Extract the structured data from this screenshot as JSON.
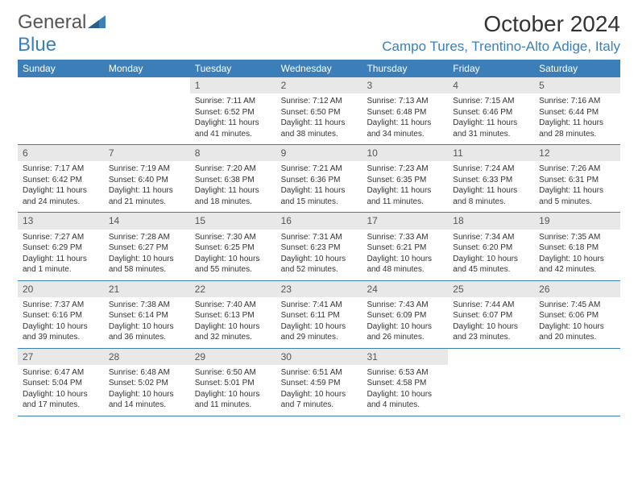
{
  "logo": {
    "text_a": "General",
    "text_b": "Blue"
  },
  "title": "October 2024",
  "location": "Campo Tures, Trentino-Alto Adige, Italy",
  "colors": {
    "accent": "#3c7fb8",
    "daybar": "#e8e8e8",
    "text": "#333333",
    "bg": "#ffffff"
  },
  "weekdays": [
    "Sunday",
    "Monday",
    "Tuesday",
    "Wednesday",
    "Thursday",
    "Friday",
    "Saturday"
  ],
  "weeks": [
    [
      {
        "n": "",
        "sr": "",
        "ss": "",
        "dl": ""
      },
      {
        "n": "",
        "sr": "",
        "ss": "",
        "dl": ""
      },
      {
        "n": "1",
        "sr": "Sunrise: 7:11 AM",
        "ss": "Sunset: 6:52 PM",
        "dl": "Daylight: 11 hours and 41 minutes."
      },
      {
        "n": "2",
        "sr": "Sunrise: 7:12 AM",
        "ss": "Sunset: 6:50 PM",
        "dl": "Daylight: 11 hours and 38 minutes."
      },
      {
        "n": "3",
        "sr": "Sunrise: 7:13 AM",
        "ss": "Sunset: 6:48 PM",
        "dl": "Daylight: 11 hours and 34 minutes."
      },
      {
        "n": "4",
        "sr": "Sunrise: 7:15 AM",
        "ss": "Sunset: 6:46 PM",
        "dl": "Daylight: 11 hours and 31 minutes."
      },
      {
        "n": "5",
        "sr": "Sunrise: 7:16 AM",
        "ss": "Sunset: 6:44 PM",
        "dl": "Daylight: 11 hours and 28 minutes."
      }
    ],
    [
      {
        "n": "6",
        "sr": "Sunrise: 7:17 AM",
        "ss": "Sunset: 6:42 PM",
        "dl": "Daylight: 11 hours and 24 minutes."
      },
      {
        "n": "7",
        "sr": "Sunrise: 7:19 AM",
        "ss": "Sunset: 6:40 PM",
        "dl": "Daylight: 11 hours and 21 minutes."
      },
      {
        "n": "8",
        "sr": "Sunrise: 7:20 AM",
        "ss": "Sunset: 6:38 PM",
        "dl": "Daylight: 11 hours and 18 minutes."
      },
      {
        "n": "9",
        "sr": "Sunrise: 7:21 AM",
        "ss": "Sunset: 6:36 PM",
        "dl": "Daylight: 11 hours and 15 minutes."
      },
      {
        "n": "10",
        "sr": "Sunrise: 7:23 AM",
        "ss": "Sunset: 6:35 PM",
        "dl": "Daylight: 11 hours and 11 minutes."
      },
      {
        "n": "11",
        "sr": "Sunrise: 7:24 AM",
        "ss": "Sunset: 6:33 PM",
        "dl": "Daylight: 11 hours and 8 minutes."
      },
      {
        "n": "12",
        "sr": "Sunrise: 7:26 AM",
        "ss": "Sunset: 6:31 PM",
        "dl": "Daylight: 11 hours and 5 minutes."
      }
    ],
    [
      {
        "n": "13",
        "sr": "Sunrise: 7:27 AM",
        "ss": "Sunset: 6:29 PM",
        "dl": "Daylight: 11 hours and 1 minute."
      },
      {
        "n": "14",
        "sr": "Sunrise: 7:28 AM",
        "ss": "Sunset: 6:27 PM",
        "dl": "Daylight: 10 hours and 58 minutes."
      },
      {
        "n": "15",
        "sr": "Sunrise: 7:30 AM",
        "ss": "Sunset: 6:25 PM",
        "dl": "Daylight: 10 hours and 55 minutes."
      },
      {
        "n": "16",
        "sr": "Sunrise: 7:31 AM",
        "ss": "Sunset: 6:23 PM",
        "dl": "Daylight: 10 hours and 52 minutes."
      },
      {
        "n": "17",
        "sr": "Sunrise: 7:33 AM",
        "ss": "Sunset: 6:21 PM",
        "dl": "Daylight: 10 hours and 48 minutes."
      },
      {
        "n": "18",
        "sr": "Sunrise: 7:34 AM",
        "ss": "Sunset: 6:20 PM",
        "dl": "Daylight: 10 hours and 45 minutes."
      },
      {
        "n": "19",
        "sr": "Sunrise: 7:35 AM",
        "ss": "Sunset: 6:18 PM",
        "dl": "Daylight: 10 hours and 42 minutes."
      }
    ],
    [
      {
        "n": "20",
        "sr": "Sunrise: 7:37 AM",
        "ss": "Sunset: 6:16 PM",
        "dl": "Daylight: 10 hours and 39 minutes."
      },
      {
        "n": "21",
        "sr": "Sunrise: 7:38 AM",
        "ss": "Sunset: 6:14 PM",
        "dl": "Daylight: 10 hours and 36 minutes."
      },
      {
        "n": "22",
        "sr": "Sunrise: 7:40 AM",
        "ss": "Sunset: 6:13 PM",
        "dl": "Daylight: 10 hours and 32 minutes."
      },
      {
        "n": "23",
        "sr": "Sunrise: 7:41 AM",
        "ss": "Sunset: 6:11 PM",
        "dl": "Daylight: 10 hours and 29 minutes."
      },
      {
        "n": "24",
        "sr": "Sunrise: 7:43 AM",
        "ss": "Sunset: 6:09 PM",
        "dl": "Daylight: 10 hours and 26 minutes."
      },
      {
        "n": "25",
        "sr": "Sunrise: 7:44 AM",
        "ss": "Sunset: 6:07 PM",
        "dl": "Daylight: 10 hours and 23 minutes."
      },
      {
        "n": "26",
        "sr": "Sunrise: 7:45 AM",
        "ss": "Sunset: 6:06 PM",
        "dl": "Daylight: 10 hours and 20 minutes."
      }
    ],
    [
      {
        "n": "27",
        "sr": "Sunrise: 6:47 AM",
        "ss": "Sunset: 5:04 PM",
        "dl": "Daylight: 10 hours and 17 minutes."
      },
      {
        "n": "28",
        "sr": "Sunrise: 6:48 AM",
        "ss": "Sunset: 5:02 PM",
        "dl": "Daylight: 10 hours and 14 minutes."
      },
      {
        "n": "29",
        "sr": "Sunrise: 6:50 AM",
        "ss": "Sunset: 5:01 PM",
        "dl": "Daylight: 10 hours and 11 minutes."
      },
      {
        "n": "30",
        "sr": "Sunrise: 6:51 AM",
        "ss": "Sunset: 4:59 PM",
        "dl": "Daylight: 10 hours and 7 minutes."
      },
      {
        "n": "31",
        "sr": "Sunrise: 6:53 AM",
        "ss": "Sunset: 4:58 PM",
        "dl": "Daylight: 10 hours and 4 minutes."
      },
      {
        "n": "",
        "sr": "",
        "ss": "",
        "dl": ""
      },
      {
        "n": "",
        "sr": "",
        "ss": "",
        "dl": ""
      }
    ]
  ]
}
